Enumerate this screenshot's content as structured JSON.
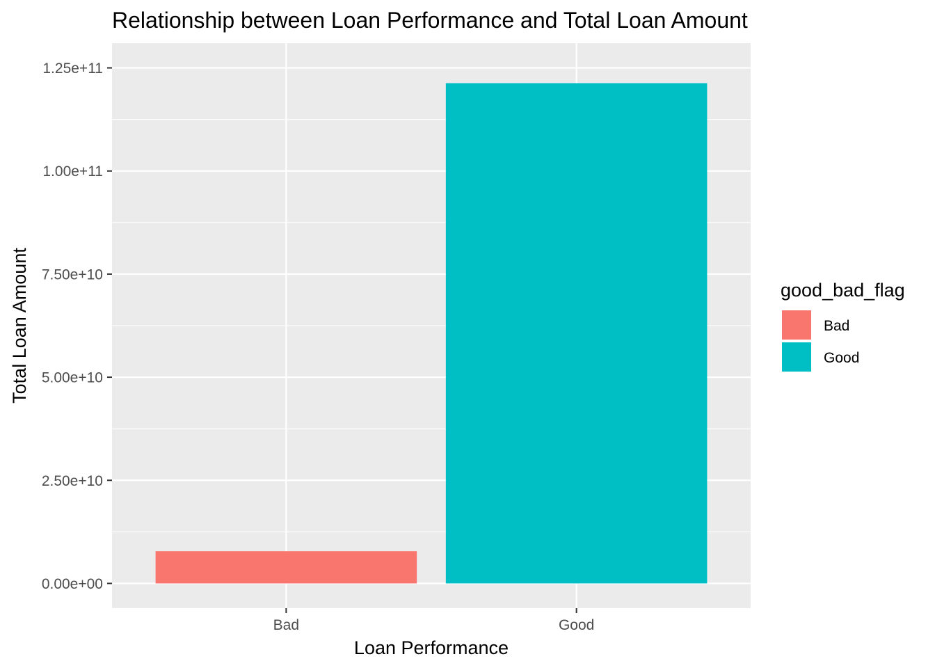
{
  "chart_data": {
    "type": "bar",
    "title": "Relationship between Loan Performance and Total Loan Amount",
    "xlabel": "Loan Performance",
    "ylabel": "Total Loan Amount",
    "categories": [
      "Bad",
      "Good"
    ],
    "values": [
      7800000000,
      121300000000
    ],
    "colors": [
      "#F8766D",
      "#00BFC4"
    ],
    "ylim": [
      -6000000000,
      131000000000
    ],
    "yticks": [
      0,
      25000000000,
      50000000000,
      75000000000,
      100000000000,
      125000000000
    ],
    "ytick_labels": [
      "0.00e+00",
      "2.50e+10",
      "5.00e+10",
      "7.50e+10",
      "1.00e+11",
      "1.25e+11"
    ],
    "legend": {
      "title": "good_bad_flag",
      "position": "right",
      "entries": [
        "Bad",
        "Good"
      ]
    },
    "grid": true,
    "panel_background": "#EBEBEB"
  }
}
